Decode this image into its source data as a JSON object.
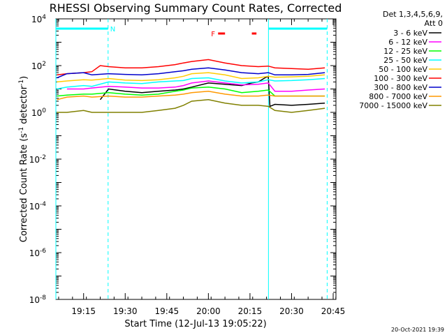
{
  "chart_data": {
    "type": "line",
    "title": "RHESSI Observing Summary Count Rates, Corrected",
    "xlabel": "Start Time (12-Jul-13 19:05:22)",
    "ylabel_main": "Corrected Count Rate (s",
    "ylabel_sup1": "-1",
    "ylabel_mid": " detector",
    "ylabel_sup2": "-1",
    "ylabel_end": ")",
    "y_scale": "log",
    "ylim": [
      1e-08,
      10000.0
    ],
    "xlim_minutes": [
      19.0833,
      20.7667
    ],
    "y_ticks": [
      {
        "exp": 4,
        "base": "10",
        "sup": "4"
      },
      {
        "exp": 2,
        "base": "10",
        "sup": "2"
      },
      {
        "exp": 0,
        "base": "10",
        "sup": "0"
      },
      {
        "exp": -2,
        "base": "10",
        "sup": "-2"
      },
      {
        "exp": -4,
        "base": "10",
        "sup": "-4"
      },
      {
        "exp": -6,
        "base": "10",
        "sup": "-6"
      },
      {
        "exp": -8,
        "base": "10",
        "sup": "-8"
      }
    ],
    "x_ticks": [
      {
        "t": 19.25,
        "label": "19:15"
      },
      {
        "t": 19.5,
        "label": "19:30"
      },
      {
        "t": 19.75,
        "label": "19:45"
      },
      {
        "t": 20.0,
        "label": "20:00"
      },
      {
        "t": 20.25,
        "label": "20:15"
      },
      {
        "t": 20.5,
        "label": "20:30"
      },
      {
        "t": 20.75,
        "label": "20:45"
      }
    ],
    "legend_header": [
      "Det 1,3,4,5,6,9,",
      "Att 0"
    ],
    "legend_position": "right",
    "flags": [
      {
        "label": "N",
        "color": "#00ffff",
        "segments": [
          [
            19.0833,
            19.3972
          ],
          [
            20.3611,
            20.7139
          ]
        ]
      },
      {
        "label": "F",
        "color": "#ff0000",
        "segments": [
          [
            20.0583,
            20.1
          ],
          [
            20.2611,
            20.2889
          ]
        ]
      }
    ],
    "vertical_lines": [
      {
        "t": 19.0833,
        "style": "solid"
      },
      {
        "t": 19.3972,
        "style": "dashed"
      },
      {
        "t": 20.3611,
        "style": "solid"
      },
      {
        "t": 20.7139,
        "style": "dashed"
      }
    ],
    "series": [
      {
        "name": "3 - 6 keV",
        "color": "#000000",
        "t": [
          19.35,
          19.4,
          19.5,
          19.6,
          19.7,
          19.8,
          19.85,
          19.9,
          20.0,
          20.1,
          20.2,
          20.26,
          20.3,
          20.34,
          20.36,
          20.37,
          20.4,
          20.5,
          20.6,
          20.7
        ],
        "y": [
          3.5,
          10,
          8,
          7,
          8,
          9,
          10,
          12,
          18,
          16,
          14,
          18,
          20,
          30,
          35,
          1.8,
          2.2,
          2.0,
          2.2,
          2.5
        ]
      },
      {
        "name": "6 - 12 keV",
        "color": "#ff00ff",
        "t": [
          19.15,
          19.25,
          19.3,
          19.4,
          19.5,
          19.6,
          19.7,
          19.8,
          19.85,
          19.9,
          20.0,
          20.1,
          20.2,
          20.3,
          20.36,
          20.4,
          20.5,
          20.6,
          20.7
        ],
        "y": [
          10,
          10,
          11,
          13,
          12,
          11,
          11,
          12,
          14,
          18,
          22,
          18,
          15,
          16,
          18,
          8,
          8,
          9,
          10
        ]
      },
      {
        "name": "12 - 25 keV",
        "color": "#00ff00",
        "t": [
          19.09,
          19.15,
          19.25,
          19.3,
          19.4,
          19.5,
          19.6,
          19.7,
          19.8,
          19.85,
          19.9,
          20.0,
          20.1,
          20.2,
          20.3,
          20.36,
          20.4,
          20.5,
          20.6,
          20.7
        ],
        "y": [
          5,
          5.5,
          6,
          6,
          7,
          6,
          5.5,
          6,
          8,
          9,
          11,
          12,
          10,
          7,
          8,
          9,
          5,
          5,
          5,
          5
        ]
      },
      {
        "name": "25 - 50 keV",
        "color": "#00ffff",
        "t": [
          19.09,
          19.15,
          19.25,
          19.3,
          19.4,
          19.5,
          19.6,
          19.7,
          19.8,
          19.85,
          19.9,
          20.0,
          20.1,
          20.2,
          20.3,
          20.36,
          20.4,
          20.5,
          20.6,
          20.7
        ],
        "y": [
          10,
          12,
          14,
          13,
          20,
          18,
          17,
          20,
          22,
          23,
          28,
          30,
          22,
          18,
          20,
          25,
          22,
          23,
          25,
          28
        ]
      },
      {
        "name": "50 - 100 keV",
        "color": "#ffcc00",
        "t": [
          19.09,
          19.15,
          19.25,
          19.3,
          19.4,
          19.5,
          19.6,
          19.7,
          19.8,
          19.85,
          19.9,
          20.0,
          20.1,
          20.2,
          20.3,
          20.36,
          20.4,
          20.5,
          20.6,
          20.7
        ],
        "y": [
          20,
          22,
          25,
          24,
          28,
          24,
          23,
          25,
          30,
          35,
          45,
          50,
          40,
          28,
          30,
          35,
          32,
          33,
          35,
          40
        ]
      },
      {
        "name": "100 - 300 keV",
        "color": "#ff0000",
        "t": [
          19.09,
          19.15,
          19.25,
          19.3,
          19.35,
          19.4,
          19.5,
          19.6,
          19.7,
          19.8,
          19.85,
          19.9,
          20.0,
          20.1,
          20.2,
          20.3,
          20.36,
          20.4,
          20.5,
          20.6,
          20.7
        ],
        "y": [
          40,
          45,
          50,
          55,
          100,
          90,
          80,
          80,
          90,
          110,
          130,
          150,
          180,
          130,
          100,
          90,
          95,
          80,
          75,
          70,
          80
        ]
      },
      {
        "name": "300 - 800 keV",
        "color": "#0000cc",
        "t": [
          19.09,
          19.15,
          19.25,
          19.3,
          19.4,
          19.5,
          19.6,
          19.7,
          19.8,
          19.85,
          19.9,
          20.0,
          20.1,
          20.2,
          20.3,
          20.36,
          20.4,
          20.5,
          20.6,
          20.7
        ],
        "y": [
          30,
          45,
          50,
          40,
          45,
          42,
          40,
          45,
          55,
          60,
          70,
          80,
          65,
          50,
          45,
          50,
          40,
          40,
          42,
          50
        ]
      },
      {
        "name": "800 - 7000 keV",
        "color": "#ff9900",
        "t": [
          19.09,
          19.15,
          19.25,
          19.3,
          19.4,
          19.5,
          19.6,
          19.7,
          19.8,
          19.85,
          19.9,
          20.0,
          20.1,
          20.2,
          20.3,
          20.36,
          20.4,
          20.5,
          20.6,
          20.7
        ],
        "y": [
          3.5,
          4.5,
          5,
          4.5,
          5,
          4.5,
          4.5,
          5,
          5.5,
          6,
          7,
          8,
          6,
          5,
          5,
          5.5,
          5,
          5,
          5,
          5
        ]
      },
      {
        "name": "7000 - 15000 keV",
        "color": "#808000",
        "t": [
          19.09,
          19.15,
          19.25,
          19.3,
          19.4,
          19.5,
          19.6,
          19.7,
          19.8,
          19.85,
          19.9,
          20.0,
          20.1,
          20.2,
          20.3,
          20.36,
          20.4,
          20.5,
          20.6,
          20.7
        ],
        "y": [
          1,
          1,
          1.2,
          1,
          1,
          1,
          1,
          1.2,
          1.5,
          2,
          3,
          3.5,
          2.5,
          2,
          2,
          1.8,
          1.2,
          1,
          1.2,
          1.5
        ]
      }
    ]
  },
  "footer": {
    "timestamp": "20-Oct-2021 19:39"
  }
}
